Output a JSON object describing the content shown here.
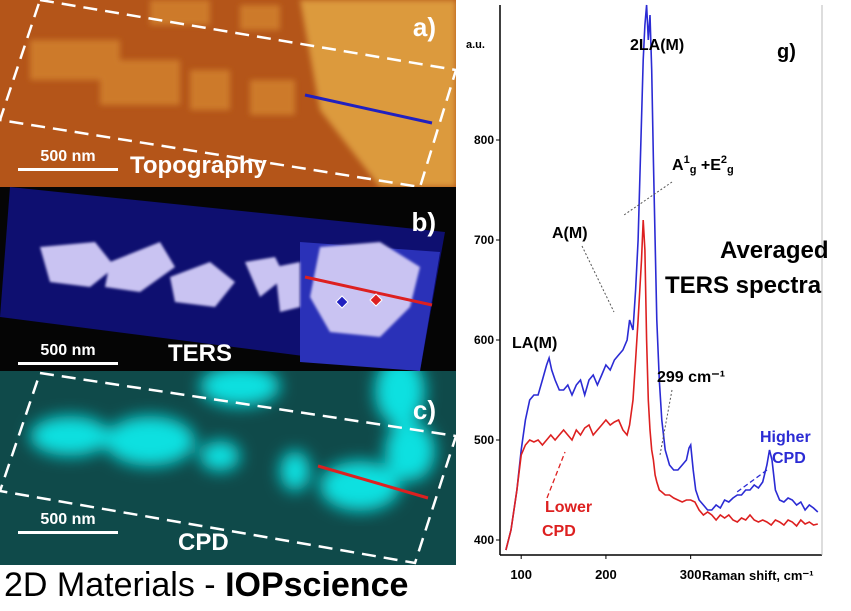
{
  "panels": {
    "a": {
      "letter": "a)",
      "scale": "500 nm",
      "title": "Topography"
    },
    "b": {
      "letter": "b)",
      "scale": "500 nm",
      "title": "TERS"
    },
    "c": {
      "letter": "c)",
      "scale": "500 nm",
      "title": "CPD"
    }
  },
  "footer": {
    "prefix": "2D Materials - ",
    "brand": "IOPscience"
  },
  "chart_data": {
    "type": "line",
    "panel_label": "g)",
    "title": "Averaged TERS spectra",
    "title_lines": [
      "Averaged",
      "TERS spectra"
    ],
    "xlabel": "Raman shift, cm⁻¹",
    "ylabel": "a.u.",
    "xlim": [
      75,
      455
    ],
    "ylim": [
      385,
      935
    ],
    "xticks": [
      100,
      200,
      300
    ],
    "yticks": [
      400,
      500,
      600,
      700,
      800
    ],
    "series": [
      {
        "name": "Higher CPD",
        "color": "#2b2bd4",
        "x": [
          82,
          88,
          95,
          100,
          105,
          110,
          115,
          120,
          125,
          130,
          133,
          136,
          140,
          145,
          150,
          155,
          160,
          165,
          170,
          175,
          180,
          185,
          190,
          195,
          200,
          205,
          210,
          215,
          220,
          225,
          228,
          232,
          235,
          238,
          240,
          242,
          244,
          246,
          248,
          250,
          252,
          254,
          256,
          258,
          260,
          263,
          266,
          270,
          275,
          280,
          285,
          290,
          295,
          298,
          300,
          303,
          306,
          310,
          315,
          320,
          325,
          330,
          335,
          340,
          345,
          350,
          355,
          360,
          365,
          370,
          375,
          380,
          385,
          390,
          393,
          396,
          400,
          405,
          410,
          415,
          420,
          425,
          430,
          435,
          440,
          445,
          450
        ],
        "y": [
          390,
          410,
          450,
          490,
          520,
          540,
          545,
          545,
          560,
          575,
          582,
          570,
          560,
          550,
          550,
          555,
          545,
          555,
          560,
          545,
          560,
          565,
          555,
          565,
          575,
          570,
          580,
          585,
          590,
          600,
          620,
          610,
          650,
          700,
          760,
          820,
          880,
          915,
          935,
          900,
          925,
          870,
          780,
          700,
          620,
          560,
          520,
          490,
          475,
          470,
          470,
          475,
          480,
          492,
          495,
          470,
          450,
          440,
          435,
          430,
          430,
          435,
          432,
          440,
          438,
          442,
          445,
          445,
          450,
          450,
          455,
          452,
          458,
          475,
          490,
          480,
          450,
          440,
          438,
          442,
          440,
          435,
          438,
          430,
          435,
          432,
          428
        ]
      },
      {
        "name": "Lower CPD",
        "color": "#dd2020",
        "x": [
          82,
          88,
          95,
          100,
          105,
          110,
          115,
          120,
          125,
          130,
          135,
          140,
          145,
          150,
          155,
          160,
          165,
          170,
          175,
          180,
          185,
          190,
          195,
          200,
          205,
          210,
          215,
          220,
          225,
          228,
          232,
          235,
          238,
          240,
          242,
          244,
          246,
          248,
          250,
          252,
          254,
          256,
          258,
          260,
          263,
          266,
          270,
          275,
          280,
          285,
          290,
          295,
          300,
          305,
          310,
          315,
          320,
          325,
          330,
          335,
          340,
          345,
          350,
          355,
          360,
          365,
          370,
          375,
          380,
          385,
          390,
          395,
          400,
          405,
          410,
          415,
          420,
          425,
          430,
          435,
          440,
          445,
          450
        ],
        "y": [
          390,
          410,
          450,
          485,
          495,
          500,
          498,
          500,
          495,
          500,
          505,
          500,
          505,
          510,
          505,
          500,
          510,
          505,
          512,
          515,
          505,
          510,
          515,
          520,
          515,
          518,
          520,
          510,
          505,
          515,
          540,
          580,
          620,
          650,
          680,
          720,
          690,
          600,
          540,
          510,
          490,
          480,
          465,
          458,
          450,
          448,
          445,
          445,
          442,
          440,
          438,
          440,
          440,
          438,
          430,
          425,
          428,
          425,
          420,
          425,
          422,
          425,
          420,
          418,
          422,
          420,
          425,
          420,
          418,
          420,
          418,
          415,
          420,
          418,
          415,
          420,
          418,
          414,
          420,
          416,
          418,
          415,
          416
        ]
      }
    ],
    "annotations": [
      "2LA(M)",
      "A(M)",
      "LA(M)",
      "299 cm⁻¹",
      "A¹g +E²g"
    ],
    "series_labels": [
      [
        "Higher",
        "CPD"
      ],
      [
        "Lower",
        "CPD"
      ]
    ],
    "colors": {
      "topography": "#b85a1e",
      "ters_bg": "#050505",
      "cpd_bg": "#0a3434"
    }
  }
}
